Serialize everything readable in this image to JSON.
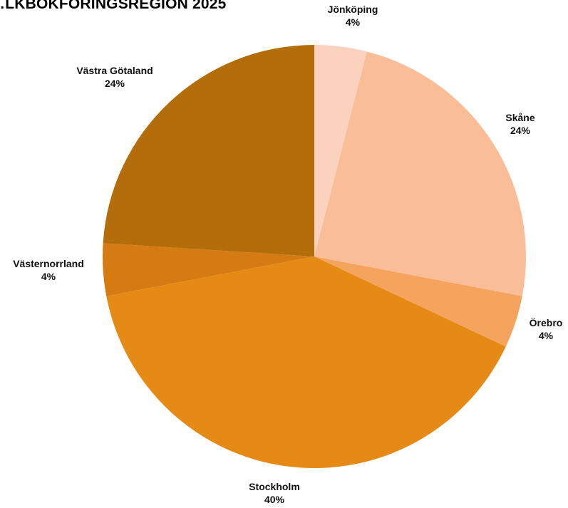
{
  "chart_data": {
    "type": "pie",
    "title": "…LKBOKFÖRINGSREGION 2025",
    "slices": [
      {
        "name": "Jönköping",
        "value": 4,
        "label": "4%",
        "color": "#FAD2BE"
      },
      {
        "name": "Skåne",
        "value": 24,
        "label": "24%",
        "color": "#F9BD97"
      },
      {
        "name": "Örebro",
        "value": 4,
        "label": "4%",
        "color": "#F5A45E"
      },
      {
        "name": "Stockholm",
        "value": 40,
        "label": "40%",
        "color": "#E68A16"
      },
      {
        "name": "Västernorrland",
        "value": 4,
        "label": "4%",
        "color": "#D67A12"
      },
      {
        "name": "Västra Götaland",
        "value": 24,
        "label": "24%",
        "color": "#B36D0A"
      }
    ],
    "start_angle": "12 o'clock",
    "direction": "clockwise"
  }
}
